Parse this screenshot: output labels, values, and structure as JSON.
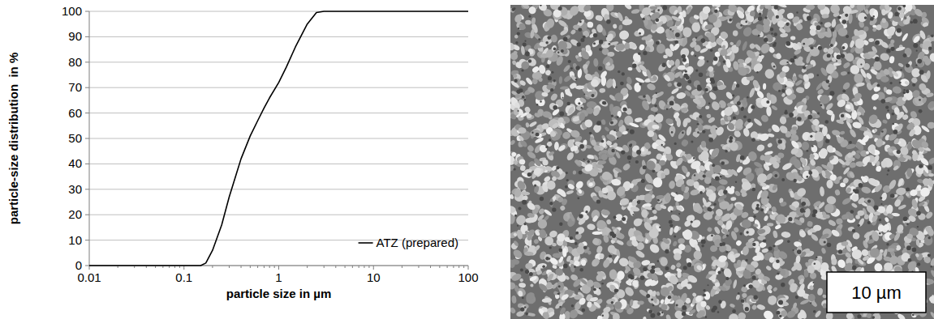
{
  "chart_data": {
    "type": "line",
    "xlabel": "particle size in µm",
    "ylabel": "particle-size distribution  in %",
    "x": [
      0.01,
      0.1,
      0.15,
      0.17,
      0.2,
      0.25,
      0.3,
      0.35,
      0.4,
      0.5,
      0.6,
      0.7,
      0.8,
      1,
      1.2,
      1.5,
      2,
      2.5,
      3,
      10,
      100
    ],
    "series": [
      {
        "name": "ATZ (prepared)",
        "color": "#000000",
        "values": [
          0,
          0,
          0,
          1,
          6,
          16,
          27,
          35,
          42,
          51,
          57,
          62,
          66,
          72,
          78,
          86,
          95,
          99.5,
          100,
          100,
          100
        ]
      }
    ],
    "xlim": [
      0.01,
      100
    ],
    "xticks": [
      0.01,
      0.1,
      1,
      10,
      100
    ],
    "ylim": [
      0,
      100
    ],
    "yticks": [
      0,
      10,
      20,
      30,
      40,
      50,
      60,
      70,
      80,
      90,
      100
    ],
    "log": "x",
    "grid": true,
    "legend": "lower right"
  },
  "image": {
    "scale_bar_label": "10 µm"
  }
}
